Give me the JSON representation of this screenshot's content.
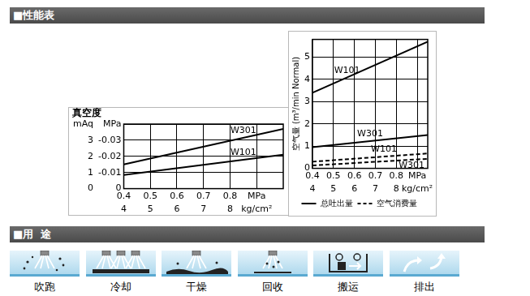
{
  "header": {
    "title": "■性能表"
  },
  "chart_data": [
    {
      "type": "line",
      "title": "真空度",
      "x": [
        0.4,
        1.0
      ],
      "series": [
        {
          "name": "W301",
          "color": "#000000",
          "line_style": "solid",
          "values": [
            1.5,
            3.7
          ]
        },
        {
          "name": "W101",
          "color": "#000000",
          "line_style": "solid",
          "values": [
            0.85,
            2.1
          ]
        }
      ],
      "xlim": [
        0.4,
        1.0
      ],
      "xticks": [
        0.4,
        0.5,
        0.6,
        0.7,
        0.8,
        {
          "value": 0.9,
          "label": "MPa"
        }
      ],
      "x2lim": [
        4,
        10
      ],
      "x2ticks": [
        4,
        5,
        6,
        7,
        8,
        {
          "value": 9,
          "label": "kg/cm²"
        }
      ],
      "ylim": [
        0,
        4
      ],
      "yticks": [
        0,
        1,
        2,
        3,
        {
          "value": 4,
          "label": "mAq"
        }
      ],
      "y2lim": [
        0,
        -0.04
      ],
      "y2ticks": [
        0,
        -0.01,
        -0.02,
        -0.03,
        {
          "value": -0.04,
          "label": "MPa"
        }
      ],
      "grid": true
    },
    {
      "type": "line",
      "ylabel": "空气量 (m³/min Normal)",
      "x": [
        0.4,
        0.95
      ],
      "series": [
        {
          "name": "W101",
          "color": "#000000",
          "line_style": "solid",
          "values": [
            3.4,
            5.7
          ]
        },
        {
          "name": "W301",
          "color": "#000000",
          "line_style": "solid",
          "values": [
            0.95,
            1.5
          ]
        },
        {
          "name": "W101",
          "color": "#000000",
          "line_style": "dashed",
          "values": [
            0.3,
            0.67
          ]
        },
        {
          "name": "W301",
          "color": "#000000",
          "line_style": "dashed",
          "values": [
            0.13,
            0.43
          ]
        }
      ],
      "xlim": [
        0.4,
        0.95
      ],
      "xticks": [
        0.4,
        0.5,
        0.6,
        0.7,
        0.8,
        {
          "value": 0.9,
          "label": "MPa"
        }
      ],
      "x2lim": [
        4,
        9.5
      ],
      "x2ticks": [
        4,
        5,
        6,
        7,
        8,
        {
          "value": 9,
          "label": "kg/cm²"
        }
      ],
      "ylim": [
        0,
        5.8
      ],
      "yticks": [
        0,
        1,
        2,
        3,
        4,
        5
      ],
      "grid": true,
      "legend": "bottom",
      "legend_items": [
        {
          "label": "总吐出量",
          "line_style": "solid"
        },
        {
          "label": "空气消费量",
          "line_style": "dashed"
        }
      ]
    }
  ],
  "applications": {
    "title": "■用  途",
    "items": [
      "吹跑",
      "冷却",
      "干燥",
      "回收",
      "搬运",
      "排出"
    ]
  }
}
